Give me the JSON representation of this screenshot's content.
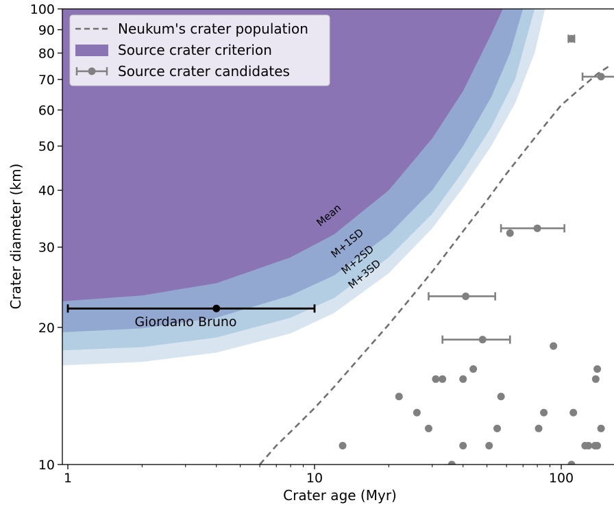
{
  "chart_data": {
    "type": "scatter",
    "xlabel": "Crater age (Myr)",
    "ylabel": "Crater diameter (km)",
    "xscale": "log",
    "yscale": "log",
    "xlim": [
      0.93,
      165
    ],
    "ylim": [
      10,
      100
    ],
    "x_ticks": [
      1,
      10,
      100
    ],
    "y_ticks": [
      10,
      20,
      30,
      40,
      50,
      60,
      70,
      80,
      90,
      100
    ],
    "legend": {
      "placement": "top-left",
      "entries": [
        "Neukum's crater population",
        "Source crater criterion",
        "Source crater candidates"
      ]
    },
    "colors": {
      "mean": "#8a74b4",
      "sd1": "#93a8d0",
      "sd2": "#b3cde3",
      "sd3": "#d8e5f1",
      "neukum": "#707070",
      "points": "#808080",
      "giordano": "#000000"
    },
    "bands": [
      {
        "label": "Mean",
        "asymptote_km": 22.7,
        "points": [
          [
            0.93,
            22.8
          ],
          [
            2,
            23.5
          ],
          [
            4,
            25.0
          ],
          [
            8,
            28.5
          ],
          [
            12,
            32.0
          ],
          [
            20,
            40.0
          ],
          [
            30,
            52.0
          ],
          [
            40,
            66.0
          ],
          [
            52,
            88.0
          ],
          [
            58,
            100.0
          ]
        ]
      },
      {
        "label": "M+1SD",
        "asymptote_km": 19.4,
        "points": [
          [
            0.93,
            19.5
          ],
          [
            2,
            19.9
          ],
          [
            4,
            21.0
          ],
          [
            8,
            23.5
          ],
          [
            12,
            26.0
          ],
          [
            20,
            32.0
          ],
          [
            30,
            40.0
          ],
          [
            40,
            50.0
          ],
          [
            52,
            64.0
          ],
          [
            62,
            80.0
          ],
          [
            70,
            100.0
          ]
        ]
      },
      {
        "label": "M+2SD",
        "asymptote_km": 17.8,
        "points": [
          [
            0.93,
            17.8
          ],
          [
            2,
            18.1
          ],
          [
            4,
            19.0
          ],
          [
            8,
            21.0
          ],
          [
            12,
            23.2
          ],
          [
            20,
            28.5
          ],
          [
            30,
            35.5
          ],
          [
            40,
            44.0
          ],
          [
            52,
            55.0
          ],
          [
            65,
            70.0
          ],
          [
            78,
            100.0
          ]
        ]
      },
      {
        "label": "M+3SD",
        "asymptote_km": 16.5,
        "points": [
          [
            0.93,
            16.5
          ],
          [
            2,
            16.8
          ],
          [
            4,
            17.6
          ],
          [
            8,
            19.4
          ],
          [
            12,
            21.5
          ],
          [
            20,
            26.3
          ],
          [
            30,
            33.0
          ],
          [
            40,
            40.5
          ],
          [
            52,
            50.0
          ],
          [
            65,
            62.0
          ],
          [
            78,
            80.0
          ],
          [
            86,
            100.0
          ]
        ]
      }
    ],
    "neukum_curve": [
      [
        6.0,
        10.0
      ],
      [
        7,
        11.0
      ],
      [
        8,
        11.8
      ],
      [
        10,
        13.3
      ],
      [
        12,
        14.8
      ],
      [
        15,
        17.0
      ],
      [
        20,
        20.3
      ],
      [
        25,
        23.5
      ],
      [
        30,
        26.5
      ],
      [
        40,
        32.5
      ],
      [
        50,
        38.0
      ],
      [
        60,
        43.5
      ],
      [
        80,
        53.0
      ],
      [
        100,
        61.5
      ],
      [
        120,
        67.0
      ],
      [
        140,
        72.0
      ],
      [
        160,
        75.5
      ]
    ],
    "giordano_bruno": {
      "label": "Giordano Bruno",
      "age": 4,
      "age_min": 1,
      "age_max": 10,
      "diameter": 22
    },
    "candidates": [
      {
        "age": 110,
        "age_min": 107,
        "age_max": 113,
        "diameter": 86
      },
      {
        "age": 145,
        "age_min": 122,
        "age_max": 165,
        "diameter": 71
      },
      {
        "age": 80,
        "age_min": 57,
        "age_max": 103,
        "diameter": 33
      },
      {
        "age": 41,
        "age_min": 29,
        "age_max": 54,
        "diameter": 23.4
      },
      {
        "age": 48,
        "age_min": 33,
        "age_max": 62,
        "diameter": 18.8
      }
    ],
    "points": [
      [
        62,
        32.2
      ],
      [
        93,
        18.2
      ],
      [
        44,
        16.2
      ],
      [
        140,
        16.2
      ],
      [
        31,
        15.4
      ],
      [
        33,
        15.4
      ],
      [
        40,
        15.4
      ],
      [
        138,
        15.4
      ],
      [
        22,
        14.1
      ],
      [
        57,
        14.1
      ],
      [
        26,
        13.0
      ],
      [
        85,
        13.0
      ],
      [
        112,
        13.0
      ],
      [
        29,
        12.0
      ],
      [
        55,
        12.0
      ],
      [
        81,
        12.0
      ],
      [
        145,
        12.0
      ],
      [
        13,
        11.0
      ],
      [
        40,
        11.0
      ],
      [
        51,
        11.0
      ],
      [
        125,
        11.0
      ],
      [
        129,
        11.0
      ],
      [
        137,
        11.0
      ],
      [
        140,
        11.0
      ],
      [
        36,
        10.0
      ],
      [
        110,
        10.0
      ]
    ]
  }
}
